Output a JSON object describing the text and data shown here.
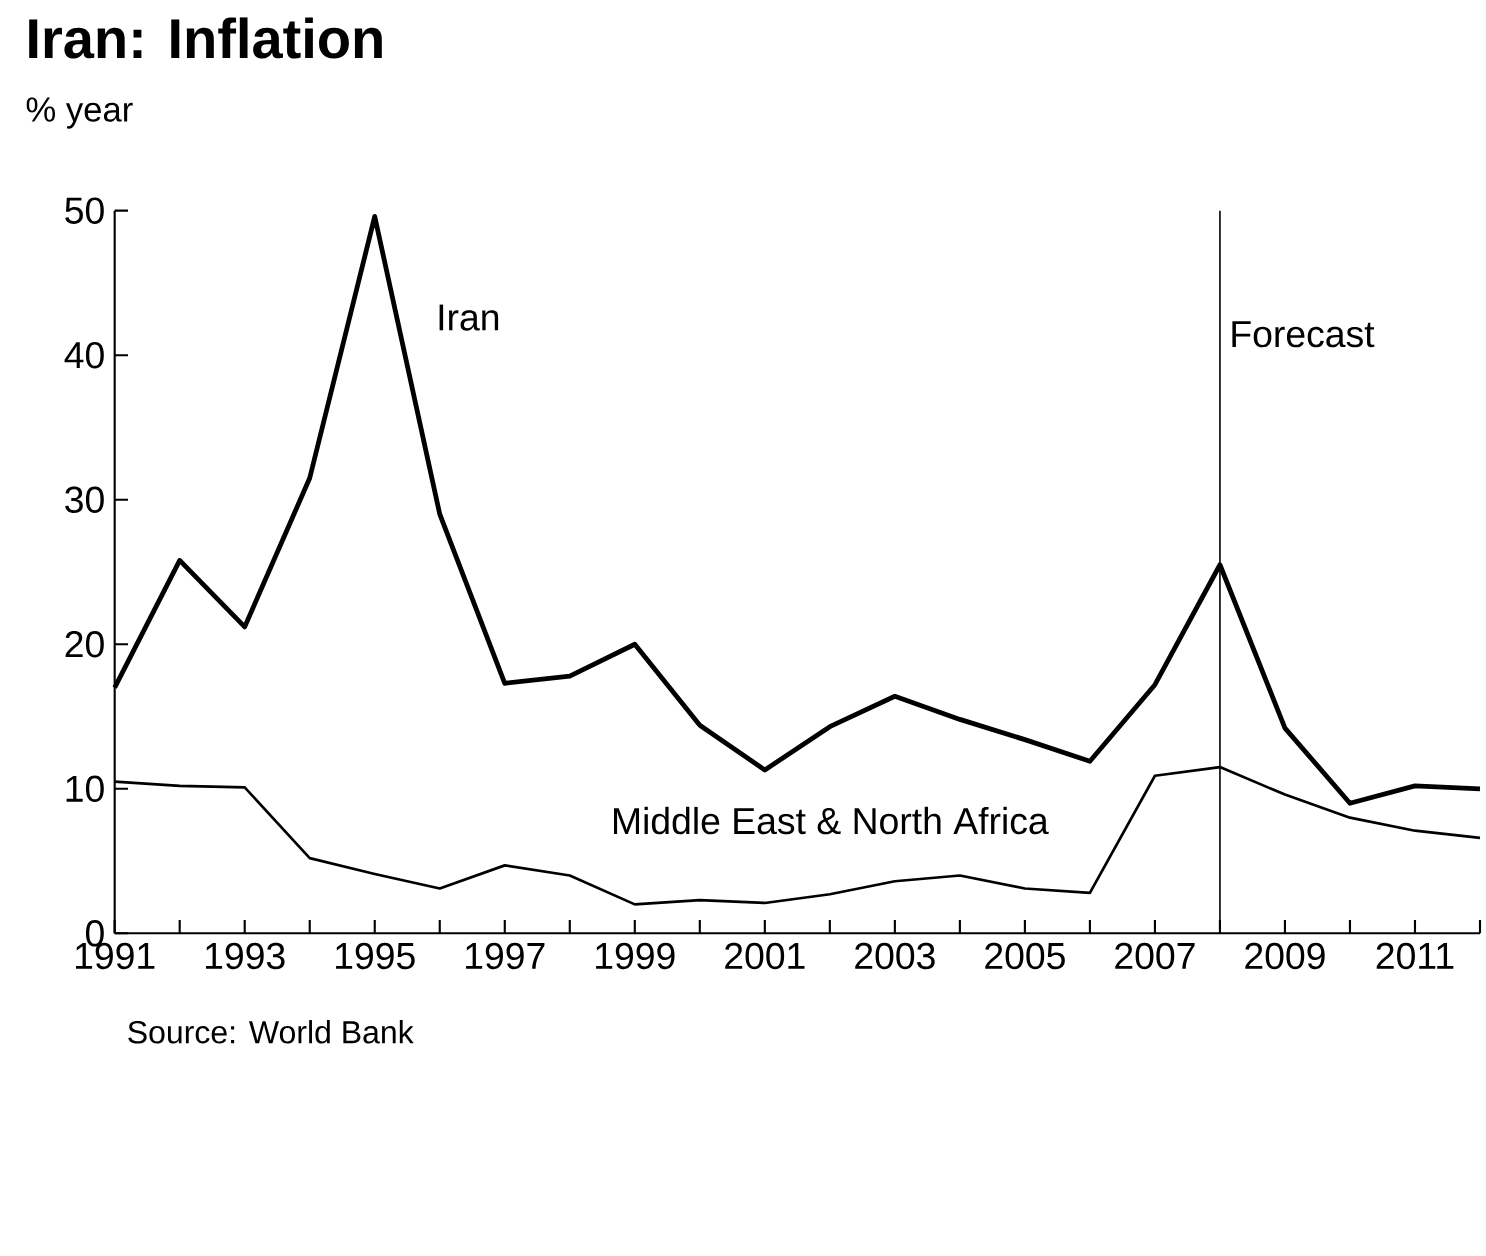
{
  "chart_data": {
    "type": "line",
    "title": "Iran: Inflation",
    "x": [
      1991,
      1992,
      1993,
      1994,
      1995,
      1996,
      1997,
      1998,
      1999,
      2000,
      2001,
      2002,
      2003,
      2004,
      2005,
      2006,
      2007,
      2008,
      2009,
      2010,
      2011,
      2012
    ],
    "series": [
      {
        "name": "Iran",
        "color": "#000000",
        "values": [
          17,
          25.8,
          21.2,
          31.5,
          49.6,
          29,
          17.3,
          17.8,
          20,
          14.4,
          11.3,
          14.3,
          16.4,
          14.8,
          13.4,
          11.9,
          17.2,
          25.5,
          14.2,
          9,
          10.2,
          10
        ]
      },
      {
        "name": "Middle East & North Africa",
        "color": "#000000",
        "values": [
          10.5,
          10.2,
          10.1,
          5.2,
          4.1,
          3.1,
          4.7,
          4.0,
          2.0,
          2.3,
          2.1,
          2.7,
          3.6,
          4.0,
          3.1,
          2.8,
          10.9,
          11.5,
          9.6,
          8.0,
          7.1,
          6.6
        ]
      }
    ],
    "xlim": [
      1991,
      2012
    ],
    "xticks": [
      1991,
      {
        "value": 1992,
        "label": null
      },
      1993,
      {
        "value": 1994,
        "label": null
      },
      1995,
      {
        "value": 1996,
        "label": null
      },
      1997,
      {
        "value": 1998,
        "label": null
      },
      1999,
      {
        "value": 2000,
        "label": null
      },
      2001,
      {
        "value": 2002,
        "label": null
      },
      2003,
      {
        "value": 2004,
        "label": null
      },
      2005,
      {
        "value": 2006,
        "label": null
      },
      2007,
      {
        "value": 2008,
        "label": null
      },
      2009,
      {
        "value": 2010,
        "label": null
      },
      2011,
      {
        "value": 2012,
        "label": null
      }
    ],
    "ylim": [
      0,
      50
    ],
    "yticks": [
      0,
      10,
      20,
      30,
      40,
      50
    ],
    "grid": false,
    "marker": "none",
    "line_style": "solid",
    "ref_lines": [
      {
        "axis": "x",
        "value": 2008,
        "label": "Forecast",
        "color": "#000000"
      }
    ],
    "annotations": [
      "% year",
      "Source: World Bank"
    ]
  }
}
